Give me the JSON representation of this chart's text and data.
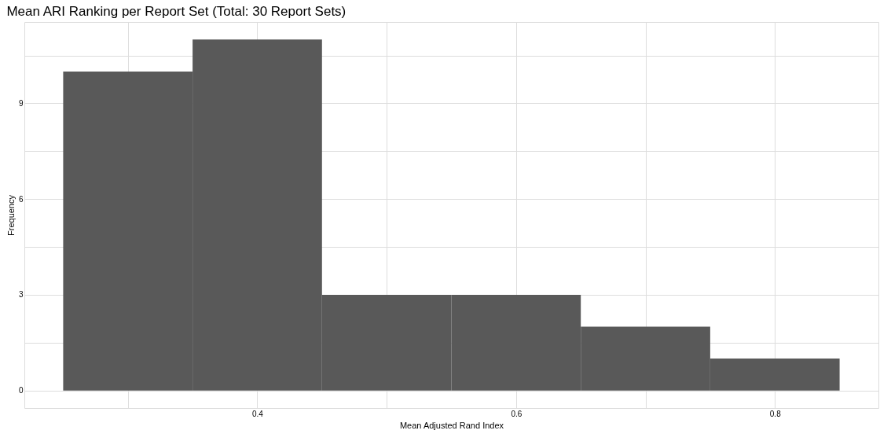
{
  "chart_data": {
    "type": "histogram",
    "title": "Mean ARI Ranking per Report Set (Total: 30 Report Sets)",
    "xlabel": "Mean Adjusted Rand Index",
    "ylabel": "Frequency",
    "bins": [
      0.25,
      0.35,
      0.45,
      0.55,
      0.65,
      0.75,
      0.85
    ],
    "values": [
      10,
      11,
      3,
      3,
      2,
      1
    ],
    "color": "#595959",
    "xlim": [
      0.22,
      0.88
    ],
    "ylim": [
      -0.55,
      11.55
    ],
    "xticks": [
      {
        "value": 0.3,
        "label": null
      },
      0.4,
      {
        "value": 0.5,
        "label": null
      },
      0.6,
      {
        "value": 0.7,
        "label": null
      },
      0.8
    ],
    "yticks": [
      0,
      {
        "value": 1.5,
        "label": null
      },
      3,
      {
        "value": 4.5,
        "label": null
      },
      6,
      {
        "value": 7.5,
        "label": null
      },
      9,
      {
        "value": 10.5,
        "label": null
      }
    ],
    "grid": true
  }
}
